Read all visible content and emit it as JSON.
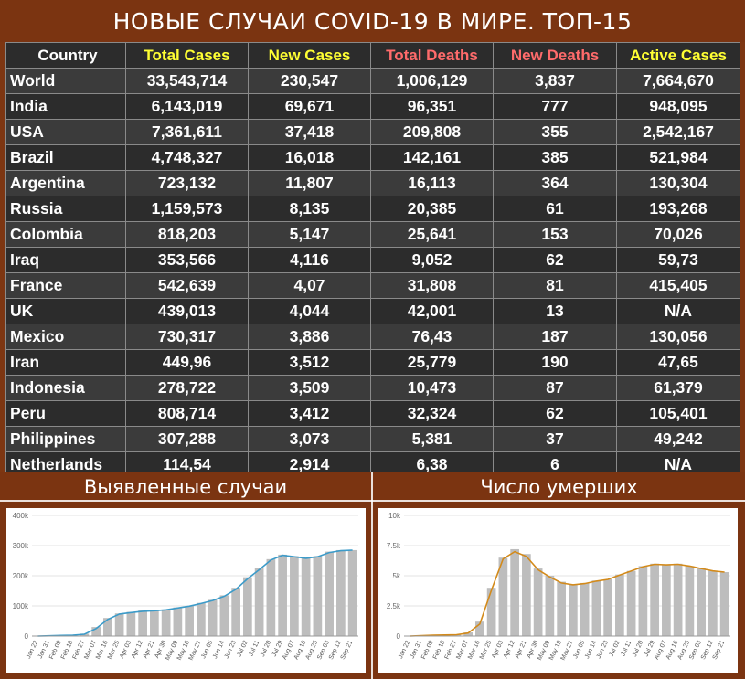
{
  "title": "НОВЫЕ СЛУЧАИ COVID-19 В МИРЕ. ТОП-15",
  "colors": {
    "yellow_header": "#ffff33",
    "red_header": "#ff6b6b",
    "white_header": "#ffffff",
    "cases_line": "#3c9bc9",
    "deaths_line": "#d38a1a",
    "bar": "#bdbdbd"
  },
  "table": {
    "headers": [
      "Country",
      "Total Cases",
      "New Cases",
      "Total Deaths",
      "New Deaths",
      "Active Cases"
    ],
    "rows": [
      [
        "World",
        "33,543,714",
        "230,547",
        "1,006,129",
        "3,837",
        "7,664,670"
      ],
      [
        "India",
        "6,143,019",
        "69,671",
        "96,351",
        "777",
        "948,095"
      ],
      [
        "USA",
        "7,361,611",
        "37,418",
        "209,808",
        "355",
        "2,542,167"
      ],
      [
        "Brazil",
        "4,748,327",
        "16,018",
        "142,161",
        "385",
        "521,984"
      ],
      [
        "Argentina",
        "723,132",
        "11,807",
        "16,113",
        "364",
        "130,304"
      ],
      [
        "Russia",
        "1,159,573",
        "8,135",
        "20,385",
        "61",
        "193,268"
      ],
      [
        "Colombia",
        "818,203",
        "5,147",
        "25,641",
        "153",
        "70,026"
      ],
      [
        "Iraq",
        "353,566",
        "4,116",
        "9,052",
        "62",
        "59,73"
      ],
      [
        "France",
        "542,639",
        "4,07",
        "31,808",
        "81",
        "415,405"
      ],
      [
        "UK",
        "439,013",
        "4,044",
        "42,001",
        "13",
        "N/A"
      ],
      [
        "Mexico",
        "730,317",
        "3,886",
        "76,43",
        "187",
        "130,056"
      ],
      [
        "Iran",
        "449,96",
        "3,512",
        "25,779",
        "190",
        "47,65"
      ],
      [
        "Indonesia",
        "278,722",
        "3,509",
        "10,473",
        "87",
        "61,379"
      ],
      [
        "Peru",
        "808,714",
        "3,412",
        "32,324",
        "62",
        "105,401"
      ],
      [
        "Philippines",
        "307,288",
        "3,073",
        "5,381",
        "37",
        "49,242"
      ],
      [
        "Netherlands",
        "114,54",
        "2,914",
        "6,38",
        "6",
        "N/A"
      ]
    ]
  },
  "panels": {
    "left_label": "Выявленные случаи",
    "right_label": "Число умерших"
  },
  "chart_data": [
    {
      "type": "bar",
      "title": "Выявленные случаи",
      "ylim": [
        0,
        400000
      ],
      "yticks": [
        0,
        100000,
        200000,
        300000,
        400000
      ],
      "ytick_labels": [
        "0",
        "100k",
        "200k",
        "300k",
        "400k"
      ],
      "xtick_labels": [
        "Jan 22",
        "Jan 31",
        "Feb 09",
        "Feb 18",
        "Feb 27",
        "Mar 07",
        "Mar 16",
        "Mar 25",
        "Apr 03",
        "Apr 12",
        "Apr 21",
        "Apr 30",
        "May 09",
        "May 18",
        "May 27",
        "Jun 05",
        "Jun 14",
        "Jun 23",
        "Jul 02",
        "Jul 11",
        "Jul 20",
        "Jul 29",
        "Aug 07",
        "Aug 16",
        "Aug 25",
        "Sep 03",
        "Sep 12",
        "Sep 21"
      ],
      "grid": true,
      "series": [
        {
          "kind": "bars",
          "values": [
            0,
            2000,
            3000,
            4000,
            8000,
            30000,
            60000,
            75000,
            80000,
            85000,
            85000,
            88000,
            95000,
            100000,
            110000,
            120000,
            135000,
            160000,
            195000,
            225000,
            255000,
            270000,
            265000,
            260000,
            265000,
            280000,
            285000,
            285000
          ]
        },
        {
          "kind": "line",
          "values": [
            0,
            1000,
            2000,
            3000,
            6000,
            25000,
            55000,
            73000,
            78000,
            82000,
            84000,
            87000,
            93000,
            99000,
            108000,
            118000,
            132000,
            155000,
            190000,
            220000,
            252000,
            268000,
            263000,
            258000,
            263000,
            277000,
            283000,
            285000
          ]
        }
      ]
    },
    {
      "type": "bar",
      "title": "Число умерших",
      "ylim": [
        0,
        10000
      ],
      "yticks": [
        0,
        2500,
        5000,
        7500,
        10000
      ],
      "ytick_labels": [
        "0",
        "2.5k",
        "5k",
        "7.5k",
        "10k"
      ],
      "xtick_labels": [
        "Jan 22",
        "Jan 31",
        "Feb 09",
        "Feb 18",
        "Feb 27",
        "Mar 07",
        "Mar 16",
        "Mar 25",
        "Apr 03",
        "Apr 12",
        "Apr 21",
        "Apr 30",
        "May 09",
        "May 18",
        "May 27",
        "Jun 05",
        "Jun 14",
        "Jun 23",
        "Jul 02",
        "Jul 11",
        "Jul 20",
        "Jul 29",
        "Aug 07",
        "Aug 16",
        "Aug 25",
        "Sep 03",
        "Sep 12",
        "Sep 21"
      ],
      "grid": true,
      "series": [
        {
          "kind": "bars",
          "values": [
            0,
            50,
            80,
            100,
            120,
            300,
            1200,
            4000,
            6500,
            7200,
            6800,
            5600,
            5000,
            4500,
            4300,
            4400,
            4600,
            4700,
            5100,
            5400,
            5800,
            6000,
            5900,
            6000,
            5800,
            5600,
            5400,
            5300
          ]
        },
        {
          "kind": "line",
          "values": [
            0,
            40,
            70,
            90,
            110,
            250,
            1000,
            3800,
            6400,
            7000,
            6600,
            5500,
            4900,
            4400,
            4250,
            4350,
            4550,
            4700,
            5050,
            5400,
            5750,
            5950,
            5900,
            5950,
            5800,
            5600,
            5400,
            5300
          ]
        }
      ]
    }
  ]
}
